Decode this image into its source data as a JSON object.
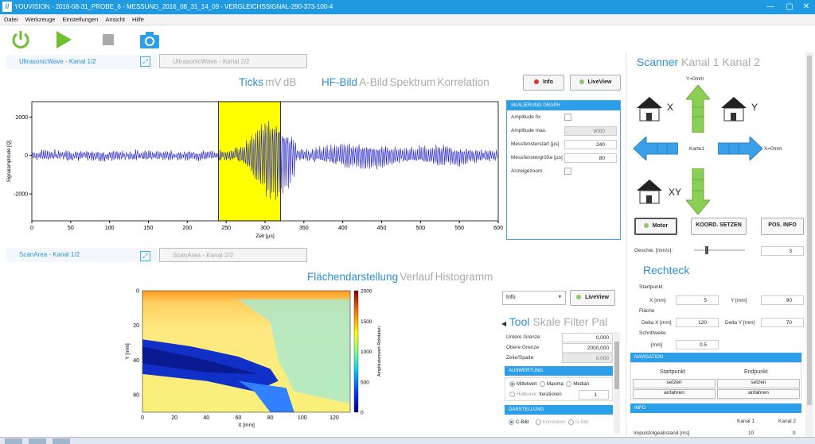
{
  "app": {
    "title": "YOUVISION - 2016-08-31_PROBE_6 - MESSUNG_2016_08_31_14_09 - VERGLEICHSSIGNAL-290-373-100-4",
    "logo": "//",
    "window_buttons": [
      "—",
      "▢",
      "✕"
    ]
  },
  "menu": [
    "Datei",
    "Werkzeuge",
    "Einstellungen",
    "Ansicht",
    "Hilfe"
  ],
  "toolbar": [
    {
      "name": "power-icon"
    },
    {
      "name": "play-icon"
    },
    {
      "name": "stop-icon"
    },
    {
      "name": "camera-icon"
    }
  ],
  "wave_tabs": {
    "active": "UltrasonicWave - Kanal 1/2",
    "inactive": "UltrasonicWave - Kanal 2/2"
  },
  "wave_modes": {
    "left": [
      "Ticks",
      "mV",
      "dB"
    ],
    "right": [
      "HF-Bild",
      "A-Bild",
      "Spektrum",
      "Korrelation"
    ]
  },
  "buttons": {
    "info": "Info",
    "liveview": "LiveView",
    "motor": "Motor",
    "koord": "KOORD. SETZEN",
    "posinfo": "POS. INFO"
  },
  "scale_panel": {
    "header": "SKALIERUNG GRAPH",
    "rows": [
      {
        "label": "Amplitude fix",
        "type": "check"
      },
      {
        "label": "Amplitude max.",
        "value": "9000",
        "gray": true
      },
      {
        "label": "Messfensterstart [µs]",
        "value": "240"
      },
      {
        "label": "Messfenstergröße [µs]",
        "value": "80"
      },
      {
        "label": "Anzeigezoom",
        "type": "check"
      }
    ]
  },
  "chart_data": [
    {
      "type": "line",
      "ylabel": "Signalamplitude [Q]",
      "xlabel": "Zeit [µs]",
      "xlim": [
        0,
        600
      ],
      "ylim": [
        -3400,
        2800
      ],
      "xticks": [
        0,
        50,
        100,
        150,
        200,
        250,
        300,
        350,
        400,
        450,
        500,
        550,
        600
      ],
      "yticks": [
        2000,
        0,
        -2000
      ],
      "highlight": [
        240,
        320
      ],
      "color": "#1c1cc8",
      "signal": "noisy ultrasonic echo peaking ~2700 around x=310"
    },
    {
      "type": "heatmap",
      "xlabel": "X [mm]",
      "ylabel": "Y [mm]",
      "colorbar_label": "Amplitudenwert Rohdaten",
      "xticks": [
        0,
        20,
        40,
        60,
        80,
        100,
        120
      ],
      "yticks": [
        0,
        20,
        40,
        60
      ],
      "cticks": [
        2000,
        1500,
        1000,
        500,
        0
      ]
    }
  ],
  "scan_tabs": {
    "active": "ScanArea - Kanal 1/2",
    "inactive": "ScanArea - Kanal 2/2"
  },
  "scan_modes": [
    "Flächendarstellung",
    "Verlauf",
    "Histogramm"
  ],
  "info_select": "Info",
  "tool_tabs": [
    "Tool",
    "Skale",
    "Filter",
    "Pal"
  ],
  "tool_fields": [
    {
      "label": "Untere Grenze",
      "value": "0,000"
    },
    {
      "label": "Obere Grenze",
      "value": "2000,000"
    },
    {
      "label": "Zeile/Spalte",
      "value": "0,000",
      "gray": true
    }
  ],
  "auswertung": {
    "header": "AUSWERTUNG",
    "options": [
      "Mittelwert",
      "Maxima",
      "Median"
    ],
    "huellkurve": "Hüllkurve",
    "iterationen": "Iterationen",
    "iter_value": "1"
  },
  "darstellung": {
    "header": "DARSTELLUNG",
    "options": [
      "C-Bild",
      "Korrelation",
      "D-Bild"
    ]
  },
  "scanner": {
    "tabs": [
      "Scanner",
      "Kanal 1",
      "Kanal 2"
    ],
    "y0": "Y=0mm",
    "x0": "X=0mm",
    "karte": "Karte1",
    "x": "X",
    "y": "Y",
    "xy": "XY",
    "speed_label": "Geschw. [mm/s]:",
    "speed": "3"
  },
  "rechteck": {
    "title": "Rechteck",
    "start": "Startpunkt",
    "x_label": "X [mm]",
    "x": "5",
    "y_label": "Y [mm]",
    "y": "90",
    "flaeche": "Fläche",
    "dx_label": "Delta X [mm]",
    "dx": "120",
    "dy_label": "Delta Y [mm]",
    "dy": "70",
    "schritt": "Schrittweite",
    "mm": "[mm]",
    "step": "0.5"
  },
  "navigation": {
    "header": "NAVIGATION",
    "start": "Startpunkt",
    "end": "Endpunkt",
    "setzen": "setzen",
    "anfahren": "anfahren"
  },
  "info": {
    "header": "INFO",
    "k1": "Kanal 1",
    "k2": "Kanal 2",
    "label": "Impulsfolgeabstand [ms]",
    "v1": "10",
    "v2": "0"
  },
  "colors": {
    "accent": "#2d8fd5",
    "header_bar": "#1f9ae0",
    "green": "#7ec43e",
    "highlight": "#ffff00"
  }
}
